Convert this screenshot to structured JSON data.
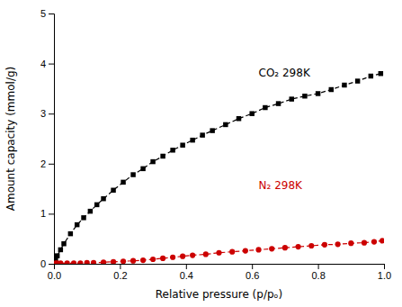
{
  "chart_data": {
    "type": "line",
    "xlabel": "Relative pressure (p/pₒ)",
    "ylabel": "Amount capacity (mmol/g)",
    "xlim": [
      0,
      1.0
    ],
    "ylim": [
      0,
      5
    ],
    "xticks": [
      {
        "value": 0.0,
        "label": "0.0"
      },
      0.2,
      0.4,
      0.6,
      0.8,
      {
        "value": 1.0,
        "label": "1.0"
      }
    ],
    "yticks": [
      0,
      1,
      2,
      3,
      4,
      5
    ],
    "grid": false,
    "annotations": [
      "CO₂ 298K",
      "N₂ 298K"
    ],
    "series": [
      {
        "color": "#000000",
        "marker": "square",
        "line_style": "dashed",
        "x": [
          0.002,
          0.005,
          0.01,
          0.02,
          0.03,
          0.05,
          0.07,
          0.09,
          0.11,
          0.13,
          0.15,
          0.18,
          0.21,
          0.24,
          0.27,
          0.3,
          0.33,
          0.36,
          0.39,
          0.42,
          0.45,
          0.48,
          0.52,
          0.56,
          0.6,
          0.64,
          0.68,
          0.72,
          0.76,
          0.8,
          0.84,
          0.88,
          0.92,
          0.96,
          0.99
        ],
        "values": [
          0.07,
          0.1,
          0.16,
          0.28,
          0.4,
          0.6,
          0.78,
          0.92,
          1.05,
          1.18,
          1.3,
          1.47,
          1.63,
          1.78,
          1.9,
          2.04,
          2.15,
          2.27,
          2.37,
          2.47,
          2.57,
          2.66,
          2.78,
          2.9,
          3.0,
          3.12,
          3.2,
          3.29,
          3.35,
          3.4,
          3.48,
          3.57,
          3.65,
          3.75,
          3.8
        ]
      },
      {
        "color": "#cc0000",
        "marker": "circle",
        "line_style": "dashed",
        "x": [
          0.005,
          0.01,
          0.02,
          0.04,
          0.06,
          0.08,
          0.1,
          0.12,
          0.15,
          0.18,
          0.21,
          0.24,
          0.27,
          0.3,
          0.33,
          0.36,
          0.39,
          0.42,
          0.46,
          0.5,
          0.54,
          0.58,
          0.62,
          0.66,
          0.7,
          0.74,
          0.78,
          0.82,
          0.86,
          0.9,
          0.94,
          0.97,
          0.995
        ],
        "values": [
          0.01,
          0.01,
          0.01,
          0.01,
          0.01,
          0.01,
          0.02,
          0.02,
          0.03,
          0.04,
          0.05,
          0.06,
          0.07,
          0.09,
          0.11,
          0.13,
          0.15,
          0.17,
          0.19,
          0.22,
          0.24,
          0.26,
          0.28,
          0.3,
          0.32,
          0.34,
          0.36,
          0.38,
          0.39,
          0.41,
          0.42,
          0.44,
          0.46
        ]
      }
    ]
  }
}
